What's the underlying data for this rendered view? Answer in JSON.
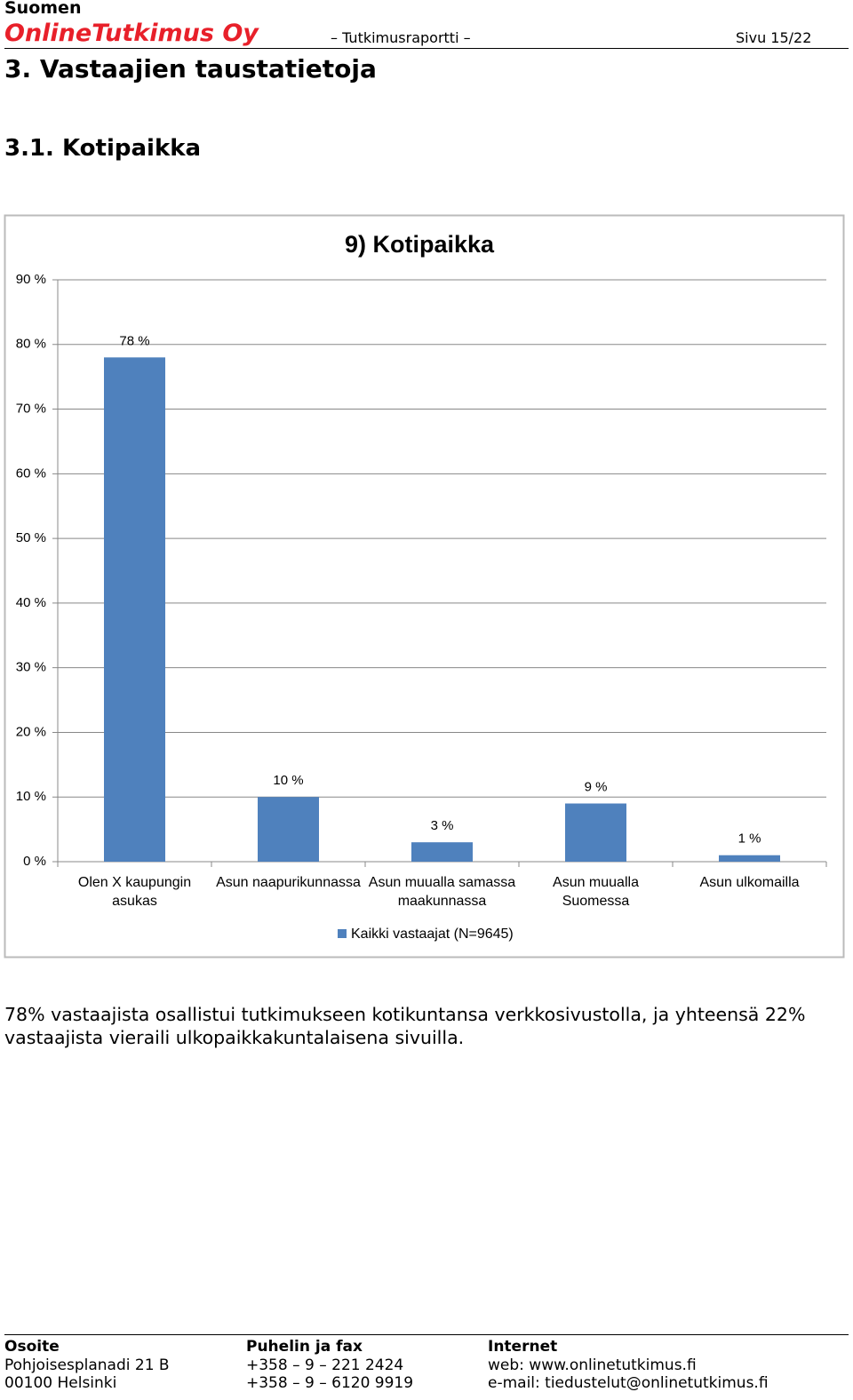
{
  "header": {
    "company_line1": "Suomen",
    "company_line2": "OnlineTutkimus Oy",
    "report": "– Tutkimusraportti –",
    "page": "Sivu 15/22"
  },
  "section_title": "3. Vastaajien taustatietoja",
  "subsection_title": "3.1. Kotipaikka",
  "chart_data": {
    "type": "bar",
    "title": "9) Kotipaikka",
    "categories": [
      "Olen X kaupungin asukas",
      "Asun naapurikunnassa",
      "Asun muualla samassa maakunnassa",
      "Asun muualla Suomessa",
      "Asun ulkomailla"
    ],
    "series": [
      {
        "name": "Kaikki vastaajat (N=9645)",
        "color": "#4f81bd",
        "values": [
          78,
          10,
          3,
          9,
          1
        ],
        "value_labels": [
          "78 %",
          "10 %",
          "3 %",
          "9 %",
          "1 %"
        ]
      }
    ],
    "ylim": [
      0,
      90
    ],
    "yticks": [
      {
        "value": 0,
        "label": "0 %"
      },
      {
        "value": 10,
        "label": "10 %"
      },
      {
        "value": 20,
        "label": "20 %"
      },
      {
        "value": 30,
        "label": "30 %"
      },
      {
        "value": 40,
        "label": "40 %"
      },
      {
        "value": 50,
        "label": "50 %"
      },
      {
        "value": 60,
        "label": "60 %"
      },
      {
        "value": 70,
        "label": "70 %"
      },
      {
        "value": 80,
        "label": "80 %"
      },
      {
        "value": 90,
        "label": "90 %"
      }
    ],
    "grid": true,
    "legend": "bottom"
  },
  "paragraph": "78% vastaajista osallistui tutkimukseen kotikuntansa verkkosivustolla, ja yhteensä 22% vastaajista vieraili ulkopaikkakuntalaisena sivuilla.",
  "footer": [
    {
      "heading": "Osoite",
      "lines": [
        "Pohjoisesplanadi 21 B",
        "00100 Helsinki"
      ]
    },
    {
      "heading": "Puhelin ja fax",
      "lines": [
        "+358 – 9 – 221 2424",
        "+358 – 9 – 6120 9919"
      ]
    },
    {
      "heading": "Internet",
      "lines": [
        "web: www.onlinetutkimus.fi",
        "e-mail: tiedustelut@onlinetutkimus.fi"
      ]
    }
  ]
}
